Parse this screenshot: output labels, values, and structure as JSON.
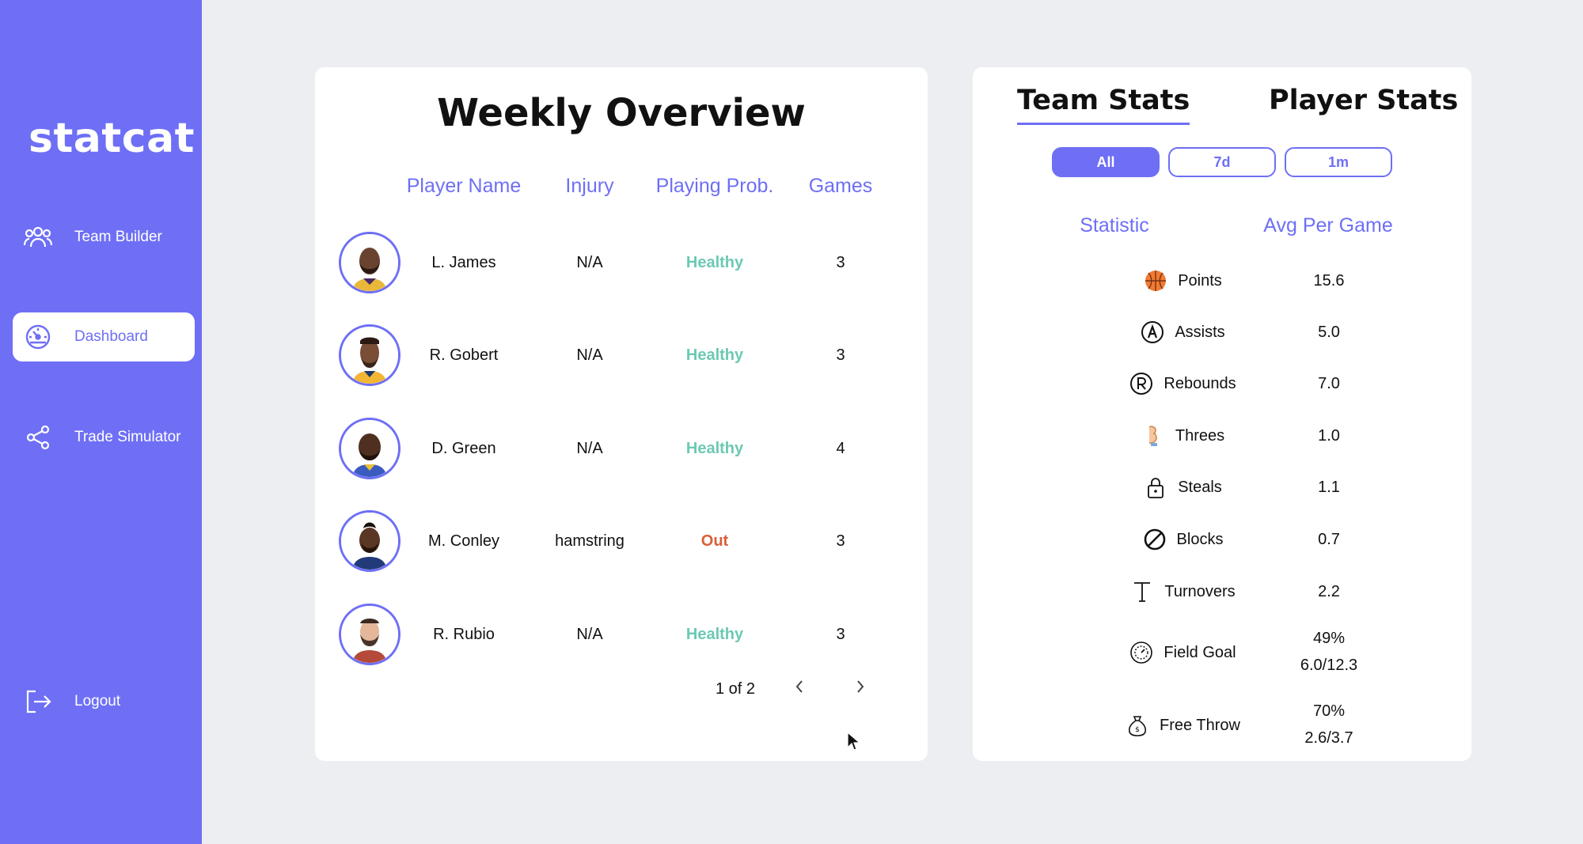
{
  "sidebar": {
    "logo": "statcat",
    "items": [
      {
        "label": "Team Builder",
        "icon": "users-icon"
      },
      {
        "label": "Dashboard",
        "icon": "gauge-icon",
        "active": true
      },
      {
        "label": "Trade Simulator",
        "icon": "share-icon"
      }
    ],
    "logout": {
      "label": "Logout",
      "icon": "logout-icon"
    }
  },
  "overview": {
    "title": "Weekly Overview",
    "columns": [
      "Player Name",
      "Injury",
      "Playing Prob.",
      "Games"
    ],
    "rows": [
      {
        "name": "L. James",
        "injury": "N/A",
        "status": "Healthy",
        "games": "3"
      },
      {
        "name": "R. Gobert",
        "injury": "N/A",
        "status": "Healthy",
        "games": "3"
      },
      {
        "name": "D. Green",
        "injury": "N/A",
        "status": "Healthy",
        "games": "4"
      },
      {
        "name": "M. Conley",
        "injury": "hamstring",
        "status": "Out",
        "games": "3"
      },
      {
        "name": "R. Rubio",
        "injury": "N/A",
        "status": "Healthy",
        "games": "3"
      }
    ],
    "pager": "1 of 2"
  },
  "stats": {
    "tabs": [
      "Team Stats",
      "Player Stats"
    ],
    "ranges": [
      "All",
      "7d",
      "1m"
    ],
    "columns": [
      "Statistic",
      "Avg Per Game"
    ],
    "rows": [
      {
        "name": "Points",
        "value": "15.6",
        "icon": "basketball-icon"
      },
      {
        "name": "Assists",
        "value": "5.0",
        "icon": "assists-icon"
      },
      {
        "name": "Rebounds",
        "value": "7.0",
        "icon": "rebounds-icon"
      },
      {
        "name": "Threes",
        "value": "1.0",
        "icon": "three-icon"
      },
      {
        "name": "Steals",
        "value": "1.1",
        "icon": "lock-icon"
      },
      {
        "name": "Blocks",
        "value": "0.7",
        "icon": "block-icon"
      },
      {
        "name": "Turnovers",
        "value": "2.2",
        "icon": "turnover-icon"
      },
      {
        "name": "Field Goal",
        "value": "49%",
        "value2": "6.0/12.3",
        "icon": "fieldgoal-icon"
      },
      {
        "name": "Free Throw",
        "value": "70%",
        "value2": "2.6/3.7",
        "icon": "moneybag-icon"
      }
    ]
  },
  "colors": {
    "accent": "#6e6ff5",
    "healthy": "#6cc9b3",
    "out": "#d9603a"
  }
}
